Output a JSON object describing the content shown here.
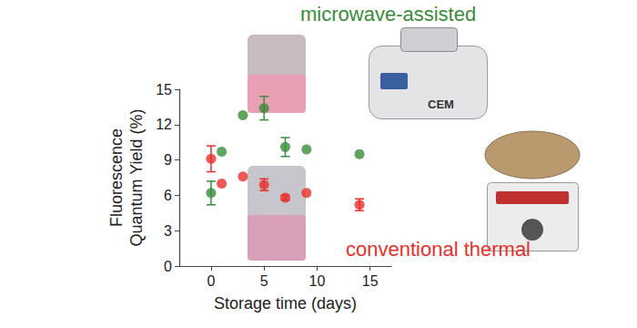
{
  "chart_data": {
    "type": "scatter",
    "x_label": "Storage time (days)",
    "y_label": "Fluorescence\nQuantum Yield (%)",
    "xlim": [
      -3,
      17
    ],
    "xticks": [
      0,
      5,
      10,
      15
    ],
    "ylim": [
      0,
      15
    ],
    "yticks": [
      0,
      3,
      6,
      9,
      12,
      15
    ],
    "grid": false,
    "marker": "circle",
    "photo_label": "CEM",
    "series": [
      {
        "name": "microwave-assisted",
        "color": "#3a8c3a",
        "x": [
          0,
          1,
          3,
          5,
          7,
          9,
          14
        ],
        "values": [
          6.2,
          9.7,
          12.8,
          13.4,
          10.1,
          9.9,
          9.5
        ],
        "errors": [
          1.0,
          null,
          null,
          1.0,
          0.8,
          null,
          null
        ]
      },
      {
        "name": "conventional thermal",
        "color": "#e8302a",
        "x": [
          0,
          1,
          3,
          5,
          7,
          9,
          14
        ],
        "values": [
          9.1,
          7.0,
          7.6,
          6.9,
          5.8,
          6.2,
          5.2
        ],
        "errors": [
          1.1,
          null,
          null,
          0.5,
          0.2,
          null,
          0.5
        ]
      }
    ]
  }
}
